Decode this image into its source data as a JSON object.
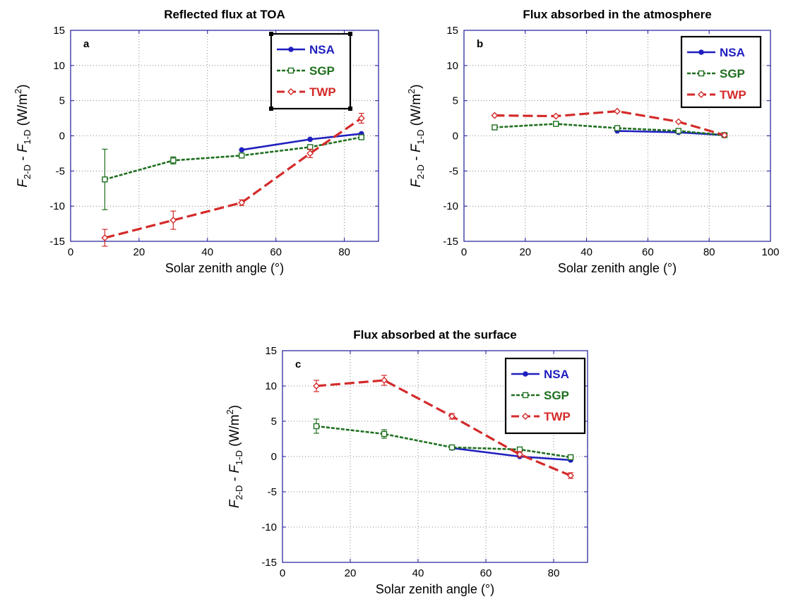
{
  "chart_data": [
    {
      "type": "line",
      "panel": "a",
      "title": "Reflected flux at TOA",
      "xlabel": "Solar zenith angle (°)",
      "ylabel": {
        "main1": "F",
        "sub1": "2-D",
        "mid": " - ",
        "main2": "F",
        "sub2": "1-D",
        "units": " (W/m",
        "sup": "2",
        "close": ")"
      },
      "xlim": [
        0,
        90
      ],
      "ylim": [
        -15,
        15
      ],
      "xticks": [
        0,
        20,
        40,
        60,
        80
      ],
      "yticks": [
        -15,
        -10,
        -5,
        0,
        5,
        10,
        15
      ],
      "legend_position": "top-right",
      "series": [
        {
          "name": "NSA",
          "color": "#1f1fbf",
          "marker": "dot",
          "x": [
            50,
            70,
            85
          ],
          "y": [
            -2.0,
            -0.5,
            0.3
          ],
          "err": [
            0,
            0,
            0
          ]
        },
        {
          "name": "SGP",
          "color": "#1f6f1f",
          "marker": "square",
          "x": [
            10,
            30,
            50,
            70,
            85
          ],
          "y": [
            -6.2,
            -3.5,
            -2.8,
            -1.6,
            -0.2
          ],
          "err": [
            4.3,
            0.5,
            0.3,
            0.3,
            0.3
          ]
        },
        {
          "name": "TWP",
          "color": "#d42a2a",
          "marker": "diamond",
          "x": [
            10,
            30,
            50,
            70,
            85
          ],
          "y": [
            -14.5,
            -12.0,
            -9.5,
            -2.5,
            2.5
          ],
          "err": [
            1.2,
            1.3,
            0.4,
            0.6,
            0.7
          ]
        }
      ]
    },
    {
      "type": "line",
      "panel": "b",
      "title": "Flux absorbed in the atmosphere",
      "xlabel": "Solar zenith angle (°)",
      "ylabel": {
        "main1": "F",
        "sub1": "2-D",
        "mid": " - ",
        "main2": "F",
        "sub2": "1-D",
        "units": " (W/m",
        "sup": "2",
        "close": ")"
      },
      "xlim": [
        0,
        100
      ],
      "ylim": [
        -15,
        15
      ],
      "xticks": [
        0,
        20,
        40,
        60,
        80,
        100
      ],
      "yticks": [
        -15,
        -10,
        -5,
        0,
        5,
        10,
        15
      ],
      "legend_position": "top-right",
      "series": [
        {
          "name": "NSA",
          "color": "#1f1fbf",
          "marker": "dot",
          "x": [
            50,
            70,
            85
          ],
          "y": [
            0.7,
            0.5,
            0.1
          ],
          "err": [
            0,
            0,
            0
          ]
        },
        {
          "name": "SGP",
          "color": "#1f6f1f",
          "marker": "square",
          "x": [
            10,
            30,
            50,
            70,
            85
          ],
          "y": [
            1.2,
            1.7,
            1.1,
            0.7,
            0.1
          ],
          "err": [
            0,
            0,
            0,
            0,
            0
          ]
        },
        {
          "name": "TWP",
          "color": "#d42a2a",
          "marker": "diamond",
          "x": [
            10,
            30,
            50,
            70,
            85
          ],
          "y": [
            2.9,
            2.8,
            3.5,
            2.0,
            0.1
          ],
          "err": [
            0,
            0,
            0,
            0,
            0
          ]
        }
      ]
    },
    {
      "type": "line",
      "panel": "c",
      "title": "Flux absorbed at the surface",
      "xlabel": "Solar zenith angle (°)",
      "ylabel": {
        "main1": "F",
        "sub1": "2-D",
        "mid": " - ",
        "main2": "F",
        "sub2": "1-D",
        "units": " (W/m",
        "sup": "2",
        "close": ")"
      },
      "xlim": [
        0,
        90
      ],
      "ylim": [
        -15,
        15
      ],
      "xticks": [
        0,
        20,
        40,
        60,
        80
      ],
      "yticks": [
        -15,
        -10,
        -5,
        0,
        5,
        10,
        15
      ],
      "legend_position": "top-right",
      "series": [
        {
          "name": "NSA",
          "color": "#1f1fbf",
          "marker": "dot",
          "x": [
            50,
            70,
            85
          ],
          "y": [
            1.2,
            0.0,
            -0.5
          ],
          "err": [
            0,
            0,
            0
          ]
        },
        {
          "name": "SGP",
          "color": "#1f6f1f",
          "marker": "square",
          "x": [
            10,
            30,
            50,
            70,
            85
          ],
          "y": [
            4.3,
            3.2,
            1.3,
            1.0,
            -0.1
          ],
          "err": [
            1.0,
            0.6,
            0.3,
            0.3,
            0.3
          ]
        },
        {
          "name": "TWP",
          "color": "#d42a2a",
          "marker": "diamond",
          "x": [
            10,
            30,
            50,
            70,
            85
          ],
          "y": [
            10.0,
            10.8,
            5.7,
            0.3,
            -2.7
          ],
          "err": [
            0.8,
            0.7,
            0.4,
            0.4,
            0.4
          ]
        }
      ]
    }
  ]
}
